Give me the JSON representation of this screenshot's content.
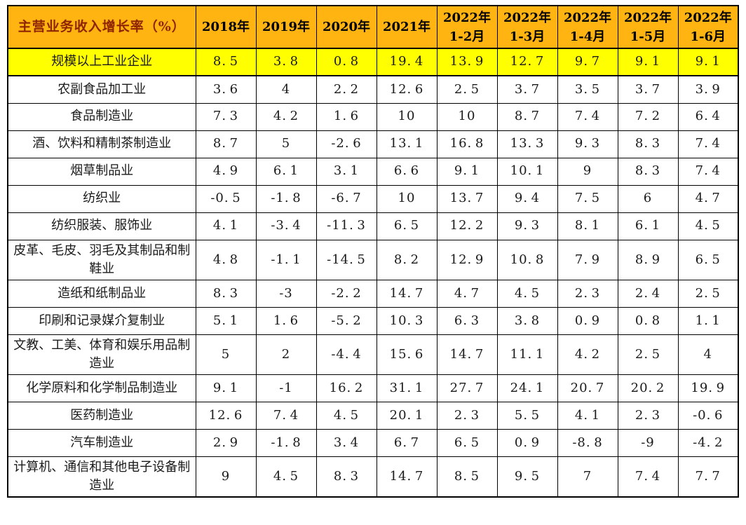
{
  "colors": {
    "header_bg": "#FFB412",
    "highlight_bg": "#FFFF00",
    "title_color": "#8F2400",
    "border_color": "#000000",
    "body_text": "#1A1A1A"
  },
  "chart_data": {
    "type": "table",
    "title": "主营业务收入增长率（%）",
    "columns": [
      {
        "label": "2018年",
        "lines": [
          "2018年"
        ]
      },
      {
        "label": "2019年",
        "lines": [
          "2019年"
        ]
      },
      {
        "label": "2020年",
        "lines": [
          "2020年"
        ]
      },
      {
        "label": "2021年",
        "lines": [
          "2021年"
        ]
      },
      {
        "label": "2022年1-2月",
        "lines": [
          "2022年",
          "1-2月"
        ]
      },
      {
        "label": "2022年1-3月",
        "lines": [
          "2022年",
          "1-3月"
        ]
      },
      {
        "label": "2022年1-4月",
        "lines": [
          "2022年",
          "1-4月"
        ]
      },
      {
        "label": "2022年1-5月",
        "lines": [
          "2022年",
          "1-5月"
        ]
      },
      {
        "label": "2022年1-6月",
        "lines": [
          "2022年",
          "1-6月"
        ]
      }
    ],
    "rows": [
      {
        "label": "规模以上工业企业",
        "highlight": true,
        "values": [
          8.5,
          3.8,
          0.8,
          19.4,
          13.9,
          12.7,
          9.7,
          9.1,
          9.1
        ]
      },
      {
        "label": "农副食品加工业",
        "highlight": false,
        "values": [
          3.6,
          4.0,
          2.2,
          12.6,
          2.5,
          3.7,
          3.5,
          3.7,
          3.9
        ]
      },
      {
        "label": "食品制造业",
        "highlight": false,
        "values": [
          7.3,
          4.2,
          1.6,
          10.0,
          10.0,
          8.7,
          7.4,
          7.2,
          6.4
        ]
      },
      {
        "label": "酒、饮料和精制茶制造业",
        "highlight": false,
        "values": [
          8.7,
          5.0,
          -2.6,
          13.1,
          16.8,
          13.3,
          9.3,
          8.3,
          7.4
        ]
      },
      {
        "label": "烟草制品业",
        "highlight": false,
        "values": [
          4.9,
          6.1,
          3.1,
          6.6,
          9.1,
          10.1,
          9.0,
          8.3,
          7.4
        ]
      },
      {
        "label": "纺织业",
        "highlight": false,
        "values": [
          -0.5,
          -1.8,
          -6.7,
          10.0,
          13.7,
          9.4,
          7.5,
          6.0,
          4.7
        ]
      },
      {
        "label": "纺织服装、服饰业",
        "highlight": false,
        "values": [
          4.1,
          -3.4,
          -11.3,
          6.5,
          12.2,
          9.3,
          8.1,
          6.1,
          4.5
        ]
      },
      {
        "label": "皮革、毛皮、羽毛及其制品和制鞋业",
        "highlight": false,
        "values": [
          4.8,
          -1.1,
          -14.5,
          8.2,
          12.9,
          10.8,
          7.9,
          8.9,
          6.5
        ]
      },
      {
        "label": "造纸和纸制品业",
        "highlight": false,
        "values": [
          8.3,
          -3.0,
          -2.2,
          14.7,
          4.7,
          4.5,
          2.3,
          2.4,
          2.5
        ]
      },
      {
        "label": "印刷和记录媒介复制业",
        "highlight": false,
        "values": [
          5.1,
          1.6,
          -5.2,
          10.3,
          6.3,
          3.8,
          0.9,
          0.8,
          1.1
        ]
      },
      {
        "label": "文教、工美、体育和娱乐用品制造业",
        "highlight": false,
        "values": [
          5.0,
          2.0,
          -4.4,
          15.6,
          14.7,
          11.1,
          4.2,
          2.5,
          4.0
        ]
      },
      {
        "label": "化学原料和化学制品制造业",
        "highlight": false,
        "values": [
          9.1,
          -1.0,
          16.2,
          31.1,
          27.7,
          24.1,
          20.7,
          20.2,
          19.9
        ]
      },
      {
        "label": "医药制造业",
        "highlight": false,
        "values": [
          12.6,
          7.4,
          4.5,
          20.1,
          2.3,
          5.5,
          4.1,
          2.3,
          -0.6
        ]
      },
      {
        "label": "汽车制造业",
        "highlight": false,
        "values": [
          2.9,
          -1.8,
          3.4,
          6.7,
          6.5,
          0.9,
          -8.8,
          -9.0,
          -4.2
        ]
      },
      {
        "label": "计算机、通信和其他电子设备制造业",
        "highlight": false,
        "values": [
          9.0,
          4.5,
          8.3,
          14.7,
          8.5,
          9.5,
          7.0,
          7.4,
          7.7
        ]
      }
    ]
  }
}
